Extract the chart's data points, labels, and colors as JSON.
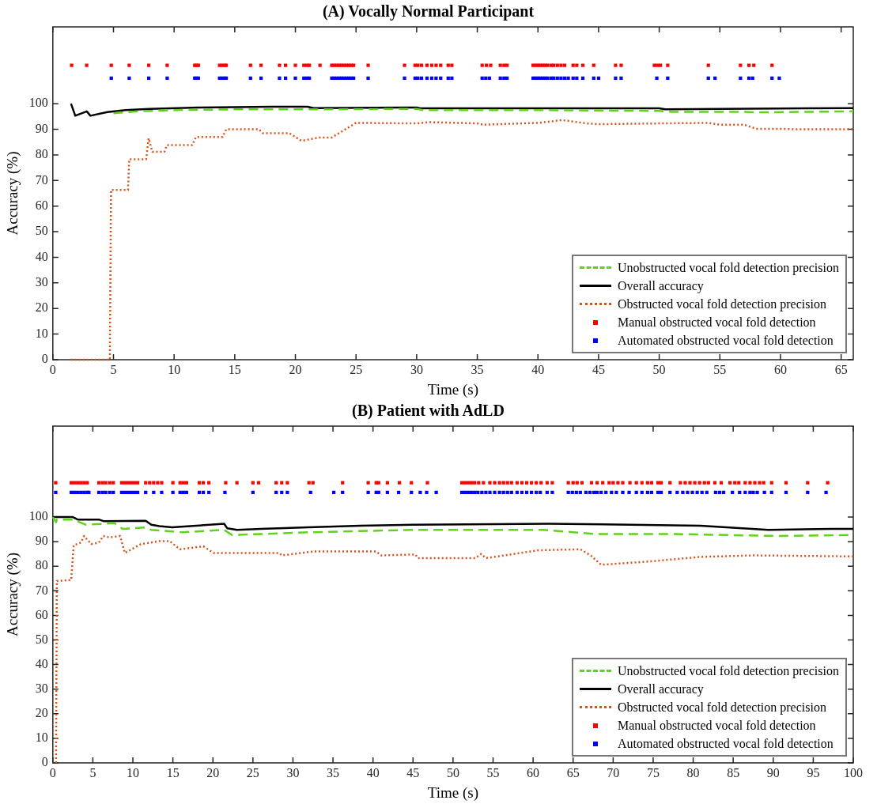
{
  "chart_data": [
    {
      "type": "line",
      "title": "(A) Vocally Normal Participant",
      "xlabel": "Time (s)",
      "ylabel": "Accuracy (%)",
      "xlim": [
        0,
        66
      ],
      "xticks": [
        0,
        5,
        10,
        15,
        20,
        25,
        30,
        35,
        40,
        45,
        50,
        55,
        60,
        65
      ],
      "ylim": [
        0,
        130
      ],
      "yticks": [
        0,
        10,
        20,
        30,
        40,
        50,
        60,
        70,
        80,
        90,
        100
      ],
      "legend": "bottom right",
      "series": [
        {
          "name": "Unobstructed vocal fold detection precision",
          "type": "line",
          "line_style": "dashed",
          "color": "#5fd21c",
          "x": [
            5,
            7,
            10,
            15,
            22,
            30,
            30.5,
            40,
            50,
            51,
            57,
            58,
            66
          ],
          "values": [
            96.3,
            97,
            97.5,
            97.8,
            97.8,
            98,
            97.5,
            97.5,
            97.2,
            96.8,
            96.8,
            96.6,
            97
          ]
        },
        {
          "name": "Overall accuracy",
          "type": "line",
          "line_style": "solid",
          "color": "#000000",
          "x": [
            1.5,
            1.85,
            2.8,
            3.1,
            4.5,
            6,
            8,
            12,
            18,
            21,
            21.5,
            30,
            30.3,
            40,
            50,
            50.5,
            66
          ],
          "values": [
            100,
            95.3,
            97,
            95.3,
            96.7,
            97.5,
            98,
            98.5,
            98.8,
            98.8,
            98.3,
            98.5,
            98.2,
            98.2,
            98.2,
            97.8,
            98.3
          ]
        },
        {
          "name": "Obstructed vocal fold detection precision",
          "type": "line",
          "line_style": "dotted",
          "color": "#d95319",
          "x": [
            1.5,
            4.7,
            4.8,
            6.2,
            6.3,
            7.7,
            7.9,
            8.2,
            9.2,
            9.4,
            11.5,
            11.8,
            14,
            14.3,
            17,
            17.3,
            19.5,
            20.5,
            22,
            23,
            25,
            30,
            31,
            35,
            35.5,
            40,
            42,
            44,
            45,
            50,
            54,
            55,
            57,
            58,
            60,
            61,
            66
          ],
          "values": [
            0,
            0,
            66.3,
            66.3,
            78.3,
            78.3,
            86.5,
            81.2,
            81.2,
            83.8,
            83.8,
            87,
            87,
            90,
            90,
            88.5,
            88.5,
            85.5,
            86.8,
            86.8,
            92.5,
            92.3,
            92.8,
            92.3,
            91.8,
            92.5,
            93.6,
            92.3,
            92,
            92.3,
            92.5,
            91.8,
            91.8,
            90.2,
            90.2,
            90,
            90
          ]
        },
        {
          "name": "Manual obstructed vocal fold detection",
          "type": "scatter",
          "marker": "square",
          "color": "#ff0000",
          "x": [
            1.55,
            2.79,
            4.82,
            6.3,
            7.91,
            9.43,
            11.7,
            11.85,
            12,
            13.75,
            13.95,
            14.15,
            14.3,
            16.3,
            17.17,
            18.69,
            19.19,
            20,
            20.7,
            20.95,
            21.15,
            22.03,
            23,
            23.2,
            23.4,
            23.6,
            23.8,
            24,
            24.2,
            24.4,
            24.6,
            24.8,
            26,
            29,
            29.87,
            30.1,
            30.4,
            30.85,
            31.24,
            31.6,
            31.98,
            32.6,
            32.9,
            35.4,
            35.75,
            36.1,
            36.9,
            37.2,
            37.45,
            39.6,
            39.8,
            40,
            40.2,
            40.4,
            40.6,
            40.8,
            41.1,
            41.3,
            41.6,
            41.9,
            42.2,
            42.9,
            43.2,
            43.7,
            44.6,
            46.4,
            46.86,
            49.6,
            49.85,
            50.1,
            50.7,
            54.05,
            56.7,
            57.4,
            57.8,
            59.3
          ],
          "values": [
            115,
            115,
            115,
            115,
            115,
            115,
            115,
            115,
            115,
            115,
            115,
            115,
            115,
            115,
            115,
            115,
            115,
            115,
            115,
            115,
            115,
            115,
            115,
            115,
            115,
            115,
            115,
            115,
            115,
            115,
            115,
            115,
            115,
            115,
            115,
            115,
            115,
            115,
            115,
            115,
            115,
            115,
            115,
            115,
            115,
            115,
            115,
            115,
            115,
            115,
            115,
            115,
            115,
            115,
            115,
            115,
            115,
            115,
            115,
            115,
            115,
            115,
            115,
            115,
            115,
            115,
            115,
            115,
            115,
            115,
            115,
            115,
            115,
            115,
            115,
            115
          ]
        },
        {
          "name": "Automated obstructed vocal fold detection",
          "type": "scatter",
          "marker": "square",
          "color": "#0000ff",
          "x": [
            4.82,
            6.3,
            7.91,
            9.43,
            11.7,
            11.85,
            12,
            13.75,
            13.95,
            14.15,
            14.3,
            16.3,
            17.17,
            18.69,
            19.19,
            20,
            20.7,
            20.95,
            21.15,
            23,
            23.2,
            23.4,
            23.6,
            23.8,
            24,
            24.2,
            24.4,
            24.6,
            24.8,
            26,
            29,
            29.87,
            30.1,
            30.4,
            30.85,
            31.24,
            31.6,
            31.98,
            32.6,
            32.9,
            35.4,
            35.7,
            36,
            36.9,
            37.2,
            37.45,
            39.6,
            39.8,
            40,
            40.2,
            40.4,
            40.6,
            40.8,
            41.1,
            41.3,
            41.6,
            41.9,
            42.2,
            42.5,
            42.9,
            43.2,
            43.7,
            44.6,
            45,
            46.4,
            46.86,
            49.8,
            50.7,
            54.05,
            54.6,
            56.7,
            57.4,
            57.7,
            59.3,
            59.9
          ],
          "values": [
            110,
            110,
            110,
            110,
            110,
            110,
            110,
            110,
            110,
            110,
            110,
            110,
            110,
            110,
            110,
            110,
            110,
            110,
            110,
            110,
            110,
            110,
            110,
            110,
            110,
            110,
            110,
            110,
            110,
            110,
            110,
            110,
            110,
            110,
            110,
            110,
            110,
            110,
            110,
            110,
            110,
            110,
            110,
            110,
            110,
            110,
            110,
            110,
            110,
            110,
            110,
            110,
            110,
            110,
            110,
            110,
            110,
            110,
            110,
            110,
            110,
            110,
            110,
            110,
            110,
            110,
            110,
            110,
            110,
            110,
            110,
            110,
            110,
            110,
            110
          ]
        }
      ]
    },
    {
      "type": "line",
      "title": "(B) Patient with AdLD",
      "xlabel": "Time (s)",
      "ylabel": "Accuracy (%)",
      "xlim": [
        0,
        100
      ],
      "xticks": [
        0,
        5,
        10,
        15,
        20,
        25,
        30,
        35,
        40,
        45,
        50,
        55,
        60,
        65,
        70,
        75,
        80,
        85,
        90,
        95,
        100
      ],
      "ylim": [
        0,
        137
      ],
      "yticks": [
        0,
        10,
        20,
        30,
        40,
        50,
        60,
        70,
        80,
        90,
        100
      ],
      "legend": "bottom right",
      "series": [
        {
          "name": "Unobstructed vocal fold detection precision",
          "type": "line",
          "line_style": "dashed",
          "color": "#5fd21c",
          "x": [
            0,
            0.4,
            0.5,
            2.5,
            4.1,
            7.7,
            8.7,
            11.6,
            12.3,
            16.2,
            21.4,
            22.4,
            31.9,
            45,
            61.3,
            67.8,
            77.7,
            90.7,
            100
          ],
          "values": [
            100,
            97.9,
            99,
            99,
            96.9,
            97.5,
            95.2,
            95.8,
            94.8,
            93.8,
            94.8,
            92.7,
            93.8,
            94.8,
            94.8,
            93.1,
            93.1,
            92.3,
            92.7
          ]
        },
        {
          "name": "Overall accuracy",
          "type": "line",
          "line_style": "solid",
          "color": "#000000",
          "x": [
            0,
            2.5,
            3.1,
            5.75,
            6.4,
            11.6,
            12.3,
            13.3,
            14.9,
            21.4,
            21.8,
            23,
            26,
            31.9,
            38.4,
            45,
            62,
            80.9,
            89.4,
            97.3,
            100
          ],
          "values": [
            100,
            100,
            99,
            99,
            98.3,
            98.5,
            96.9,
            96.3,
            95.8,
            97.3,
            95.4,
            94.8,
            95.2,
            95.8,
            96.5,
            96.9,
            97.3,
            96.5,
            94.8,
            95.2,
            95.2
          ]
        },
        {
          "name": "Obstructed vocal fold detection precision",
          "type": "line",
          "line_style": "dotted",
          "color": "#d95319",
          "x": [
            0.4,
            0.5,
            2.3,
            2.6,
            3.5,
            3.9,
            4.8,
            5.75,
            6.3,
            7.1,
            8.4,
            9,
            11,
            13.3,
            14.6,
            15.9,
            18.8,
            20.1,
            28.3,
            28.6,
            32.5,
            40.4,
            41,
            45.3,
            45.6,
            52.8,
            53.5,
            54.1,
            60.7,
            65.9,
            67.2,
            68.5,
            74.4,
            80.9,
            87.5,
            100
          ],
          "values": [
            0,
            74,
            74.4,
            88.5,
            89.6,
            92.3,
            89,
            89.6,
            92.3,
            91.7,
            92.3,
            85.4,
            89,
            90.2,
            90.2,
            86.9,
            88.1,
            85.4,
            85.4,
            84.4,
            86,
            86,
            84.4,
            84.8,
            83.3,
            83.3,
            85,
            83.3,
            86.5,
            86.9,
            84.4,
            80.6,
            81.9,
            83.8,
            84.4,
            84
          ]
        },
        {
          "name": "Manual obstructed vocal fold detection",
          "type": "scatter",
          "marker": "square",
          "color": "#ff0000",
          "x": [
            0.36,
            2.3,
            2.7,
            3.1,
            3.5,
            3.9,
            4.3,
            5.75,
            6.2,
            6.6,
            7.1,
            7.55,
            8.6,
            9,
            9.4,
            9.8,
            10.2,
            10.6,
            11.6,
            12.1,
            12.6,
            13.1,
            13.6,
            15,
            15.9,
            16.3,
            16.7,
            18.3,
            18.8,
            19.5,
            21.6,
            23,
            25,
            25.7,
            27.9,
            28.6,
            29.3,
            32,
            32.5,
            36.2,
            39.4,
            40.4,
            40.7,
            41.8,
            43.3,
            44.8,
            46.8,
            51.1,
            51.5,
            51.9,
            52.3,
            52.7,
            53.2,
            53.8,
            54.6,
            55.2,
            55.8,
            56.3,
            56.8,
            57.3,
            58,
            58.6,
            59.2,
            59.8,
            60.4,
            61,
            61.75,
            62.4,
            64.4,
            65,
            65.5,
            66.1,
            67.3,
            68,
            68.7,
            69.5,
            70,
            70.6,
            71.2,
            72.1,
            72.9,
            73.6,
            74.3,
            74.8,
            75.6,
            76,
            77.1,
            78.4,
            79,
            79.6,
            80.2,
            80.8,
            81.4,
            81.9,
            82.7,
            83.5,
            84.6,
            85.2,
            85.7,
            86.5,
            87.1,
            87.7,
            88.3,
            88.8,
            89.8,
            91.6,
            94.3,
            96.8
          ],
          "values": [
            114,
            114,
            114,
            114,
            114,
            114,
            114,
            114,
            114,
            114,
            114,
            114,
            114,
            114,
            114,
            114,
            114,
            114,
            114,
            114,
            114,
            114,
            114,
            114,
            114,
            114,
            114,
            114,
            114,
            114,
            114,
            114,
            114,
            114,
            114,
            114,
            114,
            114,
            114,
            114,
            114,
            114,
            114,
            114,
            114,
            114,
            114,
            114,
            114,
            114,
            114,
            114,
            114,
            114,
            114,
            114,
            114,
            114,
            114,
            114,
            114,
            114,
            114,
            114,
            114,
            114,
            114,
            114,
            114,
            114,
            114,
            114,
            114,
            114,
            114,
            114,
            114,
            114,
            114,
            114,
            114,
            114,
            114,
            114,
            114,
            114,
            114,
            114,
            114,
            114,
            114,
            114,
            114,
            114,
            114,
            114,
            114,
            114,
            114,
            114,
            114,
            114,
            114,
            114,
            114,
            114,
            114,
            114
          ]
        },
        {
          "name": "Automated obstructed vocal fold detection",
          "type": "scatter",
          "marker": "square",
          "color": "#0000ff",
          "x": [
            0.36,
            2.3,
            2.7,
            3.1,
            3.5,
            3.9,
            4.3,
            4.5,
            5.75,
            6.2,
            6.6,
            7.1,
            7.55,
            8.6,
            9,
            9.4,
            9.8,
            10.2,
            10.6,
            11.6,
            12.6,
            13.6,
            15,
            15.9,
            16.3,
            16.7,
            18.3,
            18.8,
            19.5,
            21.5,
            25,
            27.9,
            28.6,
            29.3,
            32.2,
            35.1,
            36.2,
            39.4,
            40.4,
            40.7,
            41.8,
            43.2,
            44.8,
            45.9,
            46.7,
            47.9,
            51.1,
            51.5,
            51.9,
            52.3,
            52.7,
            53.1,
            53.6,
            54.1,
            54.6,
            55.2,
            55.8,
            56.3,
            56.8,
            57.3,
            58,
            58.6,
            59.2,
            59.8,
            60.4,
            60.9,
            61.75,
            62.4,
            64.4,
            64.9,
            65.4,
            65.9,
            66.6,
            67.1,
            67.6,
            68,
            68.5,
            69.1,
            69.8,
            70.4,
            71.2,
            72,
            72.9,
            73.6,
            74.3,
            74.8,
            75.6,
            76,
            77.1,
            78,
            78.7,
            79.3,
            79.9,
            80.5,
            81.1,
            81.7,
            82.8,
            83.3,
            83.8,
            84.9,
            85.8,
            86.5,
            87.1,
            87.5,
            88,
            88.9,
            89.8,
            91.6,
            94.3,
            96.6
          ],
          "values": [
            110,
            110,
            110,
            110,
            110,
            110,
            110,
            110,
            110,
            110,
            110,
            110,
            110,
            110,
            110,
            110,
            110,
            110,
            110,
            110,
            110,
            110,
            110,
            110,
            110,
            110,
            110,
            110,
            110,
            110,
            110,
            110,
            110,
            110,
            110,
            110,
            110,
            110,
            110,
            110,
            110,
            110,
            110,
            110,
            110,
            110,
            110,
            110,
            110,
            110,
            110,
            110,
            110,
            110,
            110,
            110,
            110,
            110,
            110,
            110,
            110,
            110,
            110,
            110,
            110,
            110,
            110,
            110,
            110,
            110,
            110,
            110,
            110,
            110,
            110,
            110,
            110,
            110,
            110,
            110,
            110,
            110,
            110,
            110,
            110,
            110,
            110,
            110,
            110,
            110,
            110,
            110,
            110,
            110,
            110,
            110,
            110,
            110,
            110,
            110,
            110,
            110,
            110,
            110,
            110,
            110,
            110,
            110,
            110,
            110
          ]
        }
      ]
    }
  ]
}
